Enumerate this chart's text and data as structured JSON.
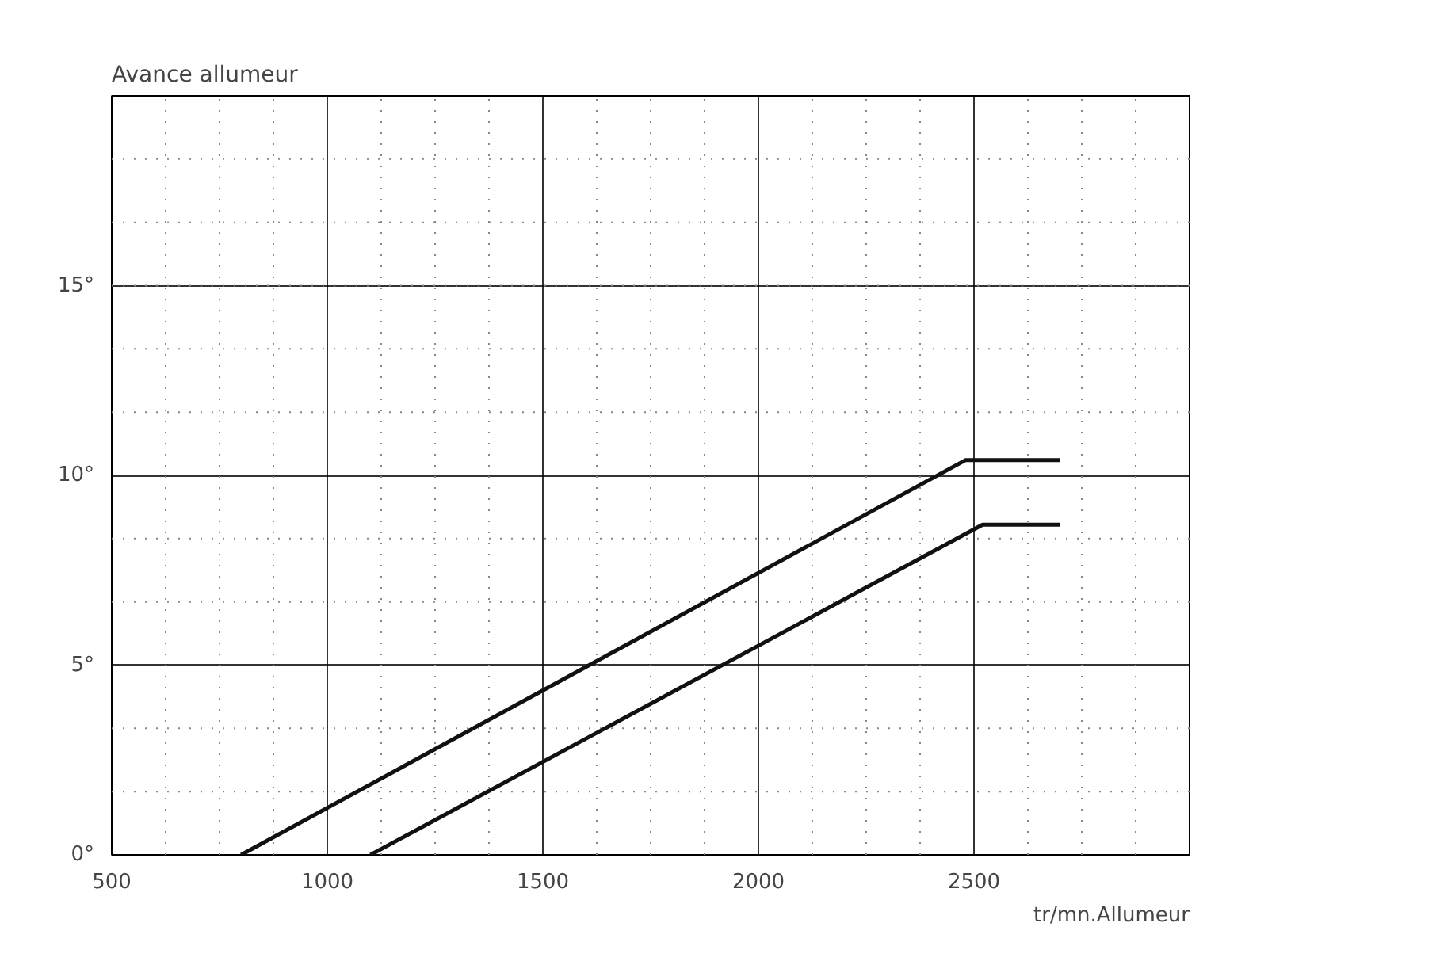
{
  "chart_data": {
    "type": "line",
    "title": "Avance allumeur",
    "xlabel": "tr/mn.Allumeur",
    "series": [
      {
        "color": "#111111",
        "x": [
          800,
          2480,
          2700
        ],
        "values": [
          0,
          10.4,
          10.4
        ]
      },
      {
        "color": "#111111",
        "x": [
          1100,
          2520,
          2700
        ],
        "values": [
          0,
          8.7,
          8.7
        ]
      }
    ],
    "xlim": [
      500,
      3000
    ],
    "ylim": [
      0,
      20
    ],
    "xticks": [
      500,
      1000,
      1500,
      2000,
      2500
    ],
    "yticks": [
      {
        "value": 0,
        "label": "0°"
      },
      {
        "value": 5,
        "label": "5°"
      },
      {
        "value": 10,
        "label": "10°"
      },
      {
        "value": 15,
        "label": "15°"
      }
    ],
    "grid": true,
    "line_style": "solid",
    "marker": "none"
  }
}
